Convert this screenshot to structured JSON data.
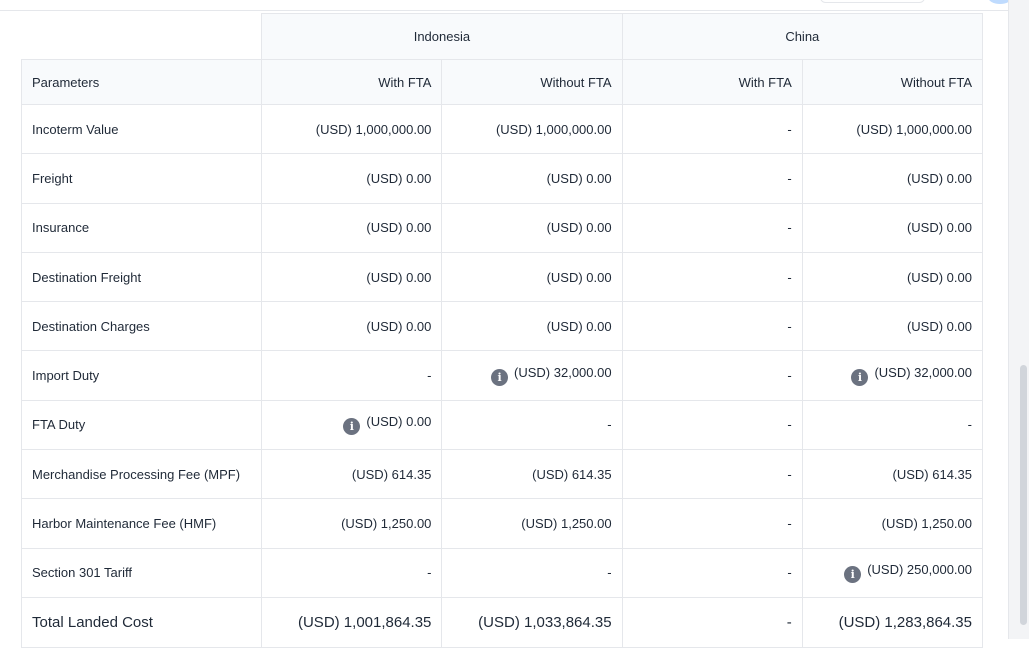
{
  "table": {
    "countries": [
      "Indonesia",
      "China"
    ],
    "param_header": "Parameters",
    "sub_headers": [
      "With FTA",
      "Without FTA",
      "With FTA",
      "Without FTA"
    ],
    "rows": [
      {
        "label": "Incoterm Value",
        "cells": [
          {
            "value": "(USD) 1,000,000.00",
            "info": false
          },
          {
            "value": "(USD) 1,000,000.00",
            "info": false
          },
          {
            "value": "-",
            "info": false
          },
          {
            "value": "(USD) 1,000,000.00",
            "info": false
          }
        ]
      },
      {
        "label": "Freight",
        "cells": [
          {
            "value": "(USD) 0.00",
            "info": false
          },
          {
            "value": "(USD) 0.00",
            "info": false
          },
          {
            "value": "-",
            "info": false
          },
          {
            "value": "(USD) 0.00",
            "info": false
          }
        ]
      },
      {
        "label": "Insurance",
        "cells": [
          {
            "value": "(USD) 0.00",
            "info": false
          },
          {
            "value": "(USD) 0.00",
            "info": false
          },
          {
            "value": "-",
            "info": false
          },
          {
            "value": "(USD) 0.00",
            "info": false
          }
        ]
      },
      {
        "label": "Destination Freight",
        "cells": [
          {
            "value": "(USD) 0.00",
            "info": false
          },
          {
            "value": "(USD) 0.00",
            "info": false
          },
          {
            "value": "-",
            "info": false
          },
          {
            "value": "(USD) 0.00",
            "info": false
          }
        ]
      },
      {
        "label": "Destination Charges",
        "cells": [
          {
            "value": "(USD) 0.00",
            "info": false
          },
          {
            "value": "(USD) 0.00",
            "info": false
          },
          {
            "value": "-",
            "info": false
          },
          {
            "value": "(USD) 0.00",
            "info": false
          }
        ]
      },
      {
        "label": "Import Duty",
        "cells": [
          {
            "value": "-",
            "info": false
          },
          {
            "value": "(USD) 32,000.00",
            "info": true
          },
          {
            "value": "-",
            "info": false
          },
          {
            "value": "(USD) 32,000.00",
            "info": true
          }
        ]
      },
      {
        "label": "FTA Duty",
        "cells": [
          {
            "value": "(USD) 0.00",
            "info": true
          },
          {
            "value": "-",
            "info": false
          },
          {
            "value": "-",
            "info": false
          },
          {
            "value": "-",
            "info": false
          }
        ]
      },
      {
        "label": "Merchandise Processing Fee (MPF)",
        "cells": [
          {
            "value": "(USD) 614.35",
            "info": false
          },
          {
            "value": "(USD) 614.35",
            "info": false
          },
          {
            "value": "-",
            "info": false
          },
          {
            "value": "(USD) 614.35",
            "info": false
          }
        ]
      },
      {
        "label": "Harbor Maintenance Fee (HMF)",
        "cells": [
          {
            "value": "(USD) 1,250.00",
            "info": false
          },
          {
            "value": "(USD) 1,250.00",
            "info": false
          },
          {
            "value": "-",
            "info": false
          },
          {
            "value": "(USD) 1,250.00",
            "info": false
          }
        ]
      },
      {
        "label": "Section 301 Tariff",
        "cells": [
          {
            "value": "-",
            "info": false
          },
          {
            "value": "-",
            "info": false
          },
          {
            "value": "-",
            "info": false
          },
          {
            "value": "(USD) 250,000.00",
            "info": true
          }
        ]
      }
    ],
    "total": {
      "label": "Total Landed Cost",
      "cells": [
        "(USD) 1,001,864.35",
        "(USD) 1,033,864.35",
        "-",
        "(USD) 1,283,864.35"
      ]
    },
    "info_icon_glyph": "i"
  },
  "icons": {
    "info": "info-icon"
  },
  "colors": {
    "header_bg": "#f8fafc",
    "border": "#e5e7eb",
    "icon_bg": "#6b7280"
  }
}
